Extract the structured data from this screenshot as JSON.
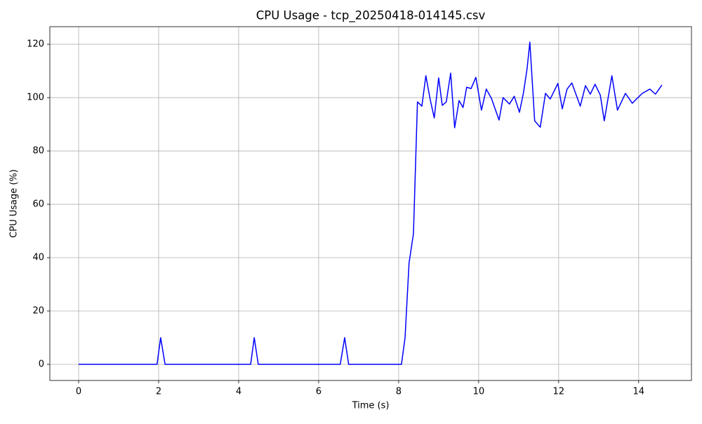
{
  "chart_data": {
    "type": "line",
    "title": "CPU Usage - tcp_20250418-014145.csv",
    "x_label": "Time (s)",
    "y_label": "CPU Usage (%)",
    "x": [
      0,
      1.96,
      2.05,
      2.16,
      4.3,
      4.39,
      4.49,
      6.54,
      6.65,
      6.75,
      8.07,
      8.16,
      8.26,
      8.37,
      8.47,
      8.58,
      8.68,
      8.79,
      8.89,
      9.0,
      9.09,
      9.19,
      9.3,
      9.4,
      9.51,
      9.61,
      9.7,
      9.81,
      9.93,
      10.07,
      10.19,
      10.32,
      10.51,
      10.61,
      10.77,
      10.89,
      11.02,
      11.12,
      11.21,
      11.28,
      11.4,
      11.54,
      11.67,
      11.79,
      11.98,
      12.09,
      12.21,
      12.33,
      12.54,
      12.67,
      12.79,
      12.91,
      13.04,
      13.14,
      13.33,
      13.47,
      13.67,
      13.84,
      14.09,
      14.28,
      14.42,
      14.58
    ],
    "values": [
      0,
      0,
      10,
      0,
      0,
      10,
      0,
      0,
      10,
      0,
      0,
      10,
      38,
      49,
      98.4,
      96.8,
      108.2,
      99.2,
      92.4,
      107.4,
      97.1,
      98.4,
      109.2,
      88.7,
      98.9,
      96.3,
      103.9,
      103.4,
      107.6,
      95.3,
      103.2,
      99.7,
      91.6,
      100,
      97.6,
      100.5,
      94.5,
      101.8,
      110.8,
      120.8,
      91.3,
      88.9,
      101.6,
      99.5,
      105.3,
      95.8,
      103.2,
      105.5,
      96.8,
      104.5,
      101.3,
      105,
      101,
      91.3,
      108.2,
      95.3,
      101.6,
      97.9,
      101.6,
      103.2,
      101.3,
      104.7
    ],
    "color": "#0000ff",
    "xlim": [
      -0.72,
      15.32
    ],
    "ylim": [
      -6.05,
      126.6
    ],
    "xticks": [
      0,
      2,
      4,
      6,
      8,
      10,
      12,
      14
    ],
    "yticks": [
      0,
      20,
      40,
      60,
      80,
      100,
      120
    ],
    "grid": true
  }
}
